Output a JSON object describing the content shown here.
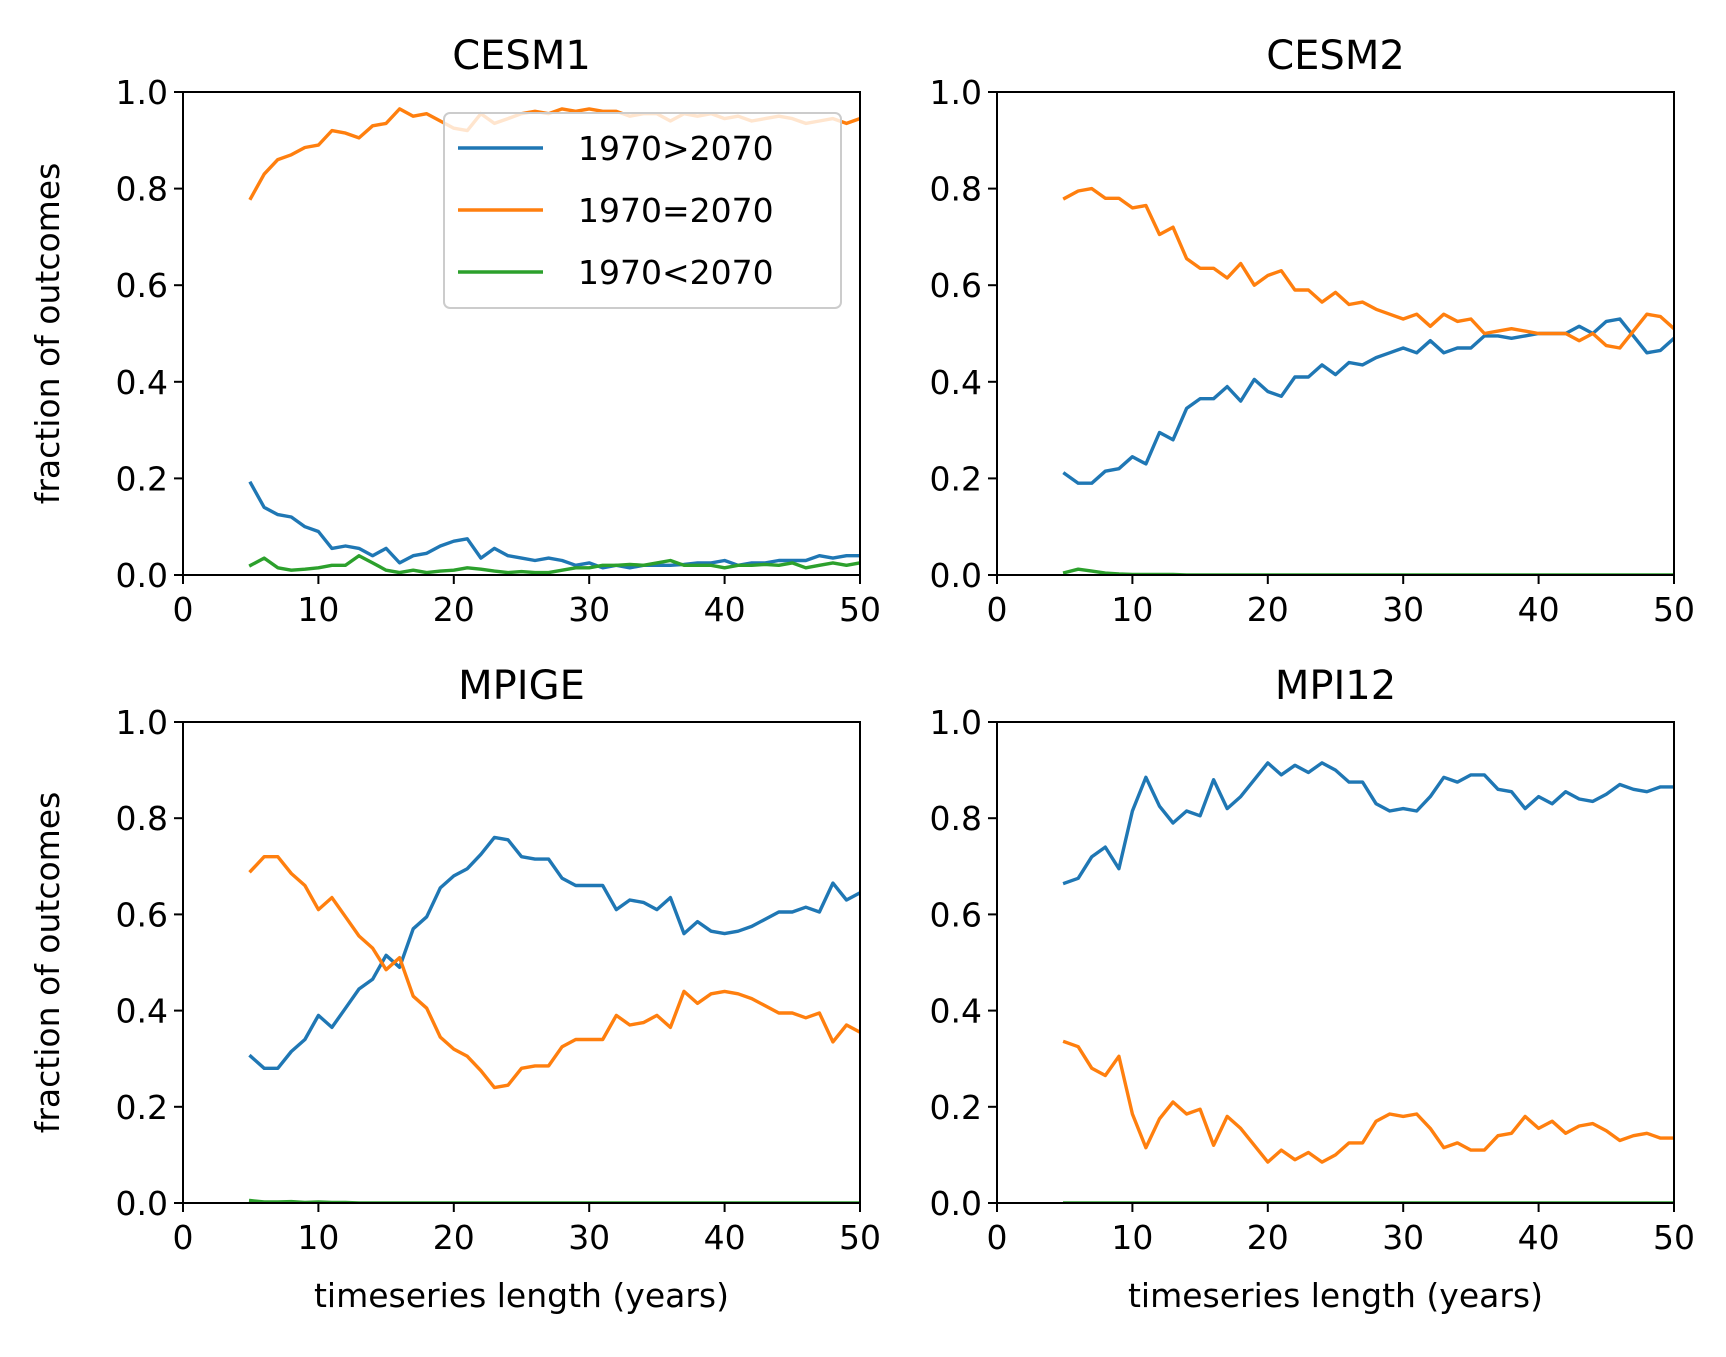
{
  "colors": {
    "series": [
      "#1f77b4",
      "#ff7f0e",
      "#2ca02c"
    ],
    "axis": "#000000",
    "legend_border": "#cccccc"
  },
  "legend": {
    "placement": "upper right, in CESM1 panel",
    "entries": [
      "1970>2070",
      "1970=2070",
      "1970<2070"
    ]
  },
  "chart_data": [
    {
      "type": "line",
      "title": "CESM1",
      "xlabel": "",
      "ylabel": "fraction of outcomes",
      "xlim": [
        0,
        50
      ],
      "ylim": [
        0,
        1
      ],
      "xticks": [
        "0",
        "10",
        "20",
        "30",
        "40",
        "50"
      ],
      "yticks": [
        "0.0",
        "0.2",
        "0.4",
        "0.6",
        "0.8",
        "1.0"
      ],
      "grid": false,
      "x_start": 5,
      "x_step": 1,
      "series": [
        {
          "name": "1970>2070",
          "values": [
            0.19,
            0.14,
            0.125,
            0.12,
            0.1,
            0.09,
            0.055,
            0.06,
            0.055,
            0.04,
            0.055,
            0.025,
            0.04,
            0.045,
            0.06,
            0.07,
            0.075,
            0.035,
            0.055,
            0.04,
            0.035,
            0.03,
            0.035,
            0.03,
            0.02,
            0.025,
            0.015,
            0.02,
            0.015,
            0.02,
            0.02,
            0.02,
            0.022,
            0.025,
            0.025,
            0.03,
            0.02,
            0.025,
            0.025,
            0.03,
            0.03,
            0.03,
            0.04,
            0.035,
            0.04,
            0.04
          ]
        },
        {
          "name": "1970=2070",
          "values": [
            0.78,
            0.83,
            0.86,
            0.87,
            0.885,
            0.89,
            0.92,
            0.915,
            0.905,
            0.93,
            0.935,
            0.965,
            0.95,
            0.955,
            0.94,
            0.925,
            0.92,
            0.955,
            0.935,
            0.945,
            0.955,
            0.96,
            0.955,
            0.965,
            0.96,
            0.965,
            0.96,
            0.96,
            0.95,
            0.955,
            0.955,
            0.94,
            0.955,
            0.95,
            0.955,
            0.945,
            0.95,
            0.94,
            0.945,
            0.95,
            0.945,
            0.935,
            0.94,
            0.945,
            0.935,
            0.945
          ]
        },
        {
          "name": "1970<2070",
          "values": [
            0.02,
            0.035,
            0.015,
            0.01,
            0.012,
            0.015,
            0.02,
            0.02,
            0.04,
            0.025,
            0.01,
            0.005,
            0.01,
            0.005,
            0.008,
            0.01,
            0.015,
            0.012,
            0.008,
            0.005,
            0.007,
            0.005,
            0.005,
            0.01,
            0.015,
            0.015,
            0.02,
            0.02,
            0.022,
            0.02,
            0.025,
            0.03,
            0.02,
            0.02,
            0.02,
            0.015,
            0.02,
            0.02,
            0.022,
            0.02,
            0.025,
            0.015,
            0.02,
            0.025,
            0.02,
            0.025
          ]
        }
      ]
    },
    {
      "type": "line",
      "title": "CESM2",
      "xlabel": "",
      "ylabel": "",
      "xlim": [
        0,
        50
      ],
      "ylim": [
        0,
        1
      ],
      "xticks": [
        "0",
        "10",
        "20",
        "30",
        "40",
        "50"
      ],
      "yticks": [
        "0.0",
        "0.2",
        "0.4",
        "0.6",
        "0.8",
        "1.0"
      ],
      "grid": false,
      "x_start": 5,
      "x_step": 1,
      "series": [
        {
          "name": "1970>2070",
          "values": [
            0.21,
            0.19,
            0.19,
            0.215,
            0.22,
            0.245,
            0.23,
            0.295,
            0.28,
            0.345,
            0.365,
            0.365,
            0.39,
            0.36,
            0.405,
            0.38,
            0.37,
            0.41,
            0.41,
            0.435,
            0.415,
            0.44,
            0.435,
            0.45,
            0.46,
            0.47,
            0.46,
            0.485,
            0.46,
            0.47,
            0.47,
            0.495,
            0.495,
            0.49,
            0.495,
            0.5,
            0.5,
            0.5,
            0.515,
            0.5,
            0.525,
            0.53,
            0.495,
            0.46,
            0.465,
            0.49
          ]
        },
        {
          "name": "1970=2070",
          "values": [
            0.78,
            0.795,
            0.8,
            0.78,
            0.78,
            0.76,
            0.765,
            0.705,
            0.72,
            0.655,
            0.635,
            0.635,
            0.615,
            0.645,
            0.6,
            0.62,
            0.63,
            0.59,
            0.59,
            0.565,
            0.585,
            0.56,
            0.565,
            0.55,
            0.54,
            0.53,
            0.54,
            0.515,
            0.54,
            0.525,
            0.53,
            0.5,
            0.505,
            0.51,
            0.505,
            0.5,
            0.5,
            0.5,
            0.485,
            0.5,
            0.475,
            0.47,
            0.505,
            0.54,
            0.535,
            0.51
          ]
        },
        {
          "name": "1970<2070",
          "values": [
            0.005,
            0.012,
            0.008,
            0.004,
            0.002,
            0.001,
            0.001,
            0.001,
            0.001,
            0,
            0,
            0,
            0,
            0,
            0,
            0,
            0,
            0,
            0,
            0,
            0,
            0,
            0,
            0,
            0,
            0,
            0,
            0,
            0,
            0,
            0,
            0,
            0,
            0,
            0,
            0,
            0,
            0,
            0,
            0,
            0,
            0,
            0,
            0,
            0,
            0
          ]
        }
      ]
    },
    {
      "type": "line",
      "title": "MPIGE",
      "xlabel": "timeseries length (years)",
      "ylabel": "fraction of outcomes",
      "xlim": [
        0,
        50
      ],
      "ylim": [
        0,
        1
      ],
      "xticks": [
        "0",
        "10",
        "20",
        "30",
        "40",
        "50"
      ],
      "yticks": [
        "0.0",
        "0.2",
        "0.4",
        "0.6",
        "0.8",
        "1.0"
      ],
      "grid": false,
      "x_start": 5,
      "x_step": 1,
      "series": [
        {
          "name": "1970>2070",
          "values": [
            0.305,
            0.28,
            0.28,
            0.315,
            0.34,
            0.39,
            0.365,
            0.405,
            0.445,
            0.465,
            0.515,
            0.49,
            0.57,
            0.595,
            0.655,
            0.68,
            0.695,
            0.725,
            0.76,
            0.755,
            0.72,
            0.715,
            0.715,
            0.675,
            0.66,
            0.66,
            0.66,
            0.61,
            0.63,
            0.625,
            0.61,
            0.635,
            0.56,
            0.585,
            0.565,
            0.56,
            0.565,
            0.575,
            0.59,
            0.605,
            0.605,
            0.615,
            0.605,
            0.665,
            0.63,
            0.645
          ]
        },
        {
          "name": "1970=2070",
          "values": [
            0.69,
            0.72,
            0.72,
            0.685,
            0.66,
            0.61,
            0.635,
            0.595,
            0.555,
            0.53,
            0.485,
            0.51,
            0.43,
            0.405,
            0.345,
            0.32,
            0.305,
            0.275,
            0.24,
            0.245,
            0.28,
            0.285,
            0.285,
            0.325,
            0.34,
            0.34,
            0.34,
            0.39,
            0.37,
            0.375,
            0.39,
            0.365,
            0.44,
            0.415,
            0.435,
            0.44,
            0.435,
            0.425,
            0.41,
            0.395,
            0.395,
            0.385,
            0.395,
            0.335,
            0.37,
            0.355
          ]
        },
        {
          "name": "1970<2070",
          "values": [
            0.005,
            0.002,
            0.002,
            0.003,
            0.001,
            0.002,
            0.001,
            0.001,
            0,
            0,
            0,
            0,
            0,
            0,
            0,
            0,
            0,
            0,
            0,
            0,
            0,
            0,
            0,
            0,
            0,
            0,
            0,
            0,
            0,
            0,
            0,
            0,
            0,
            0,
            0,
            0,
            0,
            0,
            0,
            0,
            0,
            0,
            0,
            0,
            0,
            0
          ]
        }
      ]
    },
    {
      "type": "line",
      "title": "MPI12",
      "xlabel": "timeseries length (years)",
      "ylabel": "",
      "xlim": [
        0,
        50
      ],
      "ylim": [
        0,
        1
      ],
      "xticks": [
        "0",
        "10",
        "20",
        "30",
        "40",
        "50"
      ],
      "yticks": [
        "0.0",
        "0.2",
        "0.4",
        "0.6",
        "0.8",
        "1.0"
      ],
      "grid": false,
      "x_start": 5,
      "x_step": 1,
      "series": [
        {
          "name": "1970>2070",
          "values": [
            0.665,
            0.675,
            0.72,
            0.74,
            0.695,
            0.815,
            0.885,
            0.825,
            0.79,
            0.815,
            0.805,
            0.88,
            0.82,
            0.845,
            0.88,
            0.915,
            0.89,
            0.91,
            0.895,
            0.915,
            0.9,
            0.875,
            0.875,
            0.83,
            0.815,
            0.82,
            0.815,
            0.845,
            0.885,
            0.875,
            0.89,
            0.89,
            0.86,
            0.855,
            0.82,
            0.845,
            0.83,
            0.855,
            0.84,
            0.835,
            0.85,
            0.87,
            0.86,
            0.855,
            0.865,
            0.865
          ]
        },
        {
          "name": "1970=2070",
          "values": [
            0.335,
            0.325,
            0.28,
            0.265,
            0.305,
            0.185,
            0.115,
            0.175,
            0.21,
            0.185,
            0.195,
            0.12,
            0.18,
            0.155,
            0.12,
            0.085,
            0.11,
            0.09,
            0.105,
            0.085,
            0.1,
            0.125,
            0.125,
            0.17,
            0.185,
            0.18,
            0.185,
            0.155,
            0.115,
            0.125,
            0.11,
            0.11,
            0.14,
            0.145,
            0.18,
            0.155,
            0.17,
            0.145,
            0.16,
            0.165,
            0.15,
            0.13,
            0.14,
            0.145,
            0.135,
            0.135
          ]
        },
        {
          "name": "1970<2070",
          "values": [
            0,
            0,
            0,
            0,
            0,
            0,
            0,
            0,
            0,
            0,
            0,
            0,
            0,
            0,
            0,
            0,
            0,
            0,
            0,
            0,
            0,
            0,
            0,
            0,
            0,
            0,
            0,
            0,
            0,
            0,
            0,
            0,
            0,
            0,
            0,
            0,
            0,
            0,
            0,
            0,
            0,
            0,
            0,
            0,
            0,
            0
          ]
        }
      ]
    }
  ]
}
